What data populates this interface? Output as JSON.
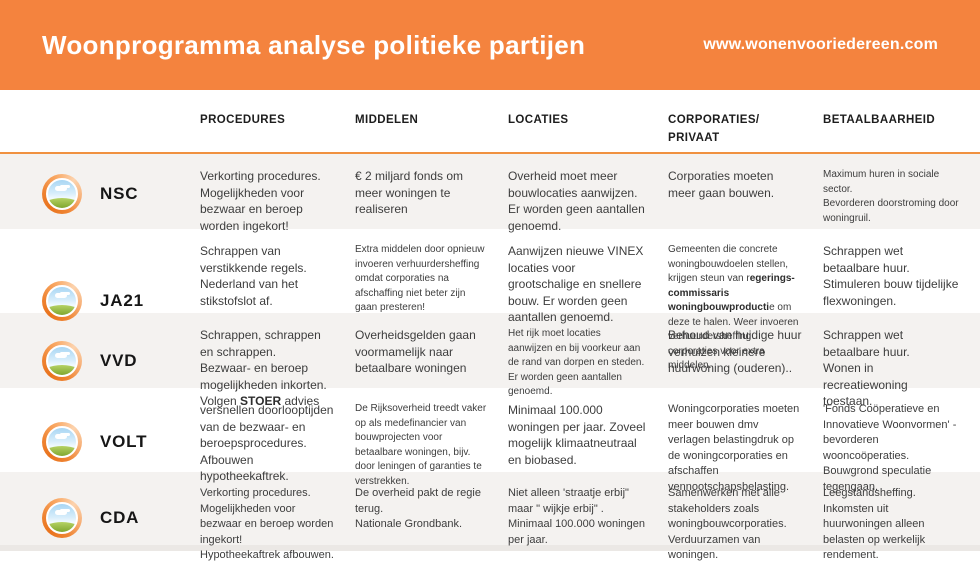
{
  "header": {
    "title": "Woonprogramma analyse politieke partijen",
    "website": "www.wonenvooriedereen.com"
  },
  "columns": [
    "PROCEDURES",
    "MIDDELEN",
    "LOCATIES",
    "CORPORATIES/\nPRIVAAT",
    "BETAALBAARHEID"
  ],
  "column_keys": [
    "procedures",
    "middelen",
    "locaties",
    "corporaties-privaat",
    "betaalbaarheid"
  ],
  "logo_icon": "landscape-globe-in-orange-ring",
  "parties": [
    {
      "name": "NSC",
      "cells": [
        {
          "text": "Verkorting procedures.\nMogelijkheden voor bezwaar en beroep worden ingekort!",
          "size": "md"
        },
        {
          "text": "€ 2 miljard fonds om meer woningen te realiseren",
          "size": "md"
        },
        {
          "text": "Overheid moet meer bouwlocaties aanwijzen.\nEr worden geen aantallen genoemd.",
          "size": "md"
        },
        {
          "text": "Corporaties moeten meer gaan bouwen.",
          "size": "md"
        },
        {
          "text": "Maximum huren in sociale sector.\nBevorderen doorstroming door woningruil.",
          "size": "sm"
        }
      ]
    },
    {
      "name": "JA21",
      "cells": [
        {
          "text": "Schrappen van verstikkende regels.\nNederland van het stikstofslot af.",
          "size": "md"
        },
        {
          "text": "Extra middelen door opnieuw invoeren verhuurdersheffing omdat corporaties na afschaffing niet beter zijn gaan presteren!",
          "size": "sm"
        },
        {
          "text": "Aanwijzen nieuwe VINEX locaties voor grootschalige en snellere bouw. Er worden geen aantallen genoemd.",
          "size": "md"
        },
        {
          "text": "Gemeenten die concrete woningbouwdoelen stellen, krijgen steun van r**egerings-commissaris woningbouwproducti**e om deze te halen. Weer invoeren verhuurdersheffing corporaties voor extra middelen.",
          "size": "sm"
        },
        {
          "text": "Schrappen wet betaalbare huur.\nStimuleren bouw tijdelijke flexwoningen.",
          "size": "md"
        }
      ]
    },
    {
      "name": "VVD",
      "cells": [
        {
          "text": "Schrappen, schrappen en schrappen.\nBezwaar- en beroep mogelijkheden inkorten.\nVolgen **STOER** advies",
          "size": "md"
        },
        {
          "text": "Overheidsgelden gaan voormamelijk naar betaalbare woningen",
          "size": "md"
        },
        {
          "text": "Het rijk moet locaties aanwijzen en bij voorkeur aan de rand van dorpen en steden. Er worden geen aantallen genoemd.",
          "size": "sm"
        },
        {
          "text": "Behoud van huidige huur verhuizen kleinere huurwoning (ouderen)..",
          "size": "md"
        },
        {
          "text": "Schrappen wet betaalbare huur.\nWonen in recreatiewoning toestaan.",
          "size": "md"
        }
      ]
    },
    {
      "name": "VOLT",
      "cells": [
        {
          "text": "versnellen doorlooptijden van de bezwaar- en beroepsprocedures.\nAfbouwen hypotheekaftrek.",
          "size": "md"
        },
        {
          "text": "De Rijksoverheid treedt vaker op als medefinancier van bouwprojecten voor betaalbare woningen, bijv. door leningen of garanties te verstrekken.",
          "size": "sm"
        },
        {
          "text": "Minimaal 100.000 woningen per jaar. Zoveel mogelijk klimaatneutraal en biobased.",
          "size": "md"
        },
        {
          "text": "Woningcorporaties moeten meer bouwen dmv verlagen belastingdruk op de woningcorporaties en afschaffen vennootschapsbelasting.",
          "size": "md-s"
        },
        {
          "text": "'Fonds Coöperatieve en Innovatieve Woonvormen' - bevorderen wooncoöperaties.\nBouwgrond speculatie tegengaan.",
          "size": "md-s"
        }
      ]
    },
    {
      "name": "CDA",
      "cells": [
        {
          "text": "Verkorting procedures.\nMogelijkheden voor bezwaar en beroep worden ingekort!\nHypotheekaftrek afbouwen.",
          "size": "md-s"
        },
        {
          "text": "De overheid pakt de regie terug.\nNationale Grondbank.",
          "size": "md-s"
        },
        {
          "text": "Niet alleen 'straatje erbij\" maar \" wijkje erbij\" .\nMinimaal 100.000 woningen per jaar.",
          "size": "md-s"
        },
        {
          "text": "Samenwerken met alle stakeholders zoals woningbouwcorporaties.\nVerduurzamen van woningen.",
          "size": "md-s"
        },
        {
          "text": "Leegstandsheffing.\nInkomsten uit huurwoningen alleen belasten op werkelijk rendement.",
          "size": "md-s"
        }
      ]
    }
  ],
  "colors": {
    "banner": "#F4833E",
    "divider": "#F09140",
    "row_alt": "#F4F2F0",
    "footer_strip": "#EBE8E5",
    "logo_orange": "#E9731D"
  }
}
